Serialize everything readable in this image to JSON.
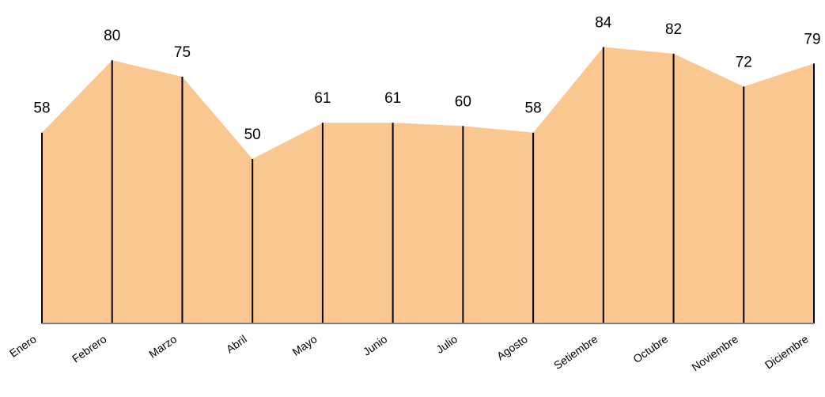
{
  "chart_data": {
    "type": "area",
    "categories": [
      "Enero",
      "Febrero",
      "Marzo",
      "Abril",
      "Mayo",
      "Junio",
      "Julio",
      "Agosto",
      "Setiembre",
      "Octubre",
      "Noviembre",
      "Diciembre"
    ],
    "series": [
      {
        "values": [
          58,
          80,
          75,
          50,
          61,
          61,
          60,
          58,
          84,
          82,
          72,
          79
        ]
      }
    ],
    "data_labels": true,
    "ylim": [
      0,
      100
    ],
    "grid": false,
    "drop_lines": true,
    "colors": {
      "fill": "#F9C78F",
      "drop_line": "#000000",
      "baseline": "#808080"
    }
  }
}
